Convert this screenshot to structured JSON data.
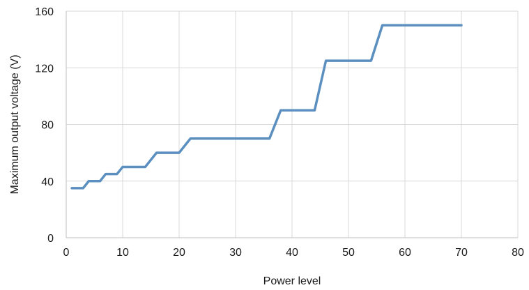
{
  "chart_data": {
    "type": "line",
    "title": "",
    "xlabel": "Power level",
    "ylabel": "Maximum output voltage (V)",
    "xlim": [
      0,
      80
    ],
    "ylim": [
      0,
      160
    ],
    "x_ticks": [
      0,
      10,
      20,
      30,
      40,
      50,
      60,
      70,
      80
    ],
    "y_ticks": [
      0,
      40,
      80,
      120,
      160
    ],
    "grid": true,
    "legend": "none",
    "series": [
      {
        "color": "#5b8fbf",
        "points": [
          [
            1,
            35
          ],
          [
            3,
            35
          ],
          [
            4,
            40
          ],
          [
            6,
            40
          ],
          [
            7,
            45
          ],
          [
            9,
            45
          ],
          [
            10,
            50
          ],
          [
            14,
            50
          ],
          [
            16,
            60
          ],
          [
            20,
            60
          ],
          [
            22,
            70
          ],
          [
            36,
            70
          ],
          [
            38,
            90
          ],
          [
            44,
            90
          ],
          [
            46,
            125
          ],
          [
            54,
            125
          ],
          [
            56,
            150
          ],
          [
            70,
            150
          ]
        ]
      }
    ]
  }
}
